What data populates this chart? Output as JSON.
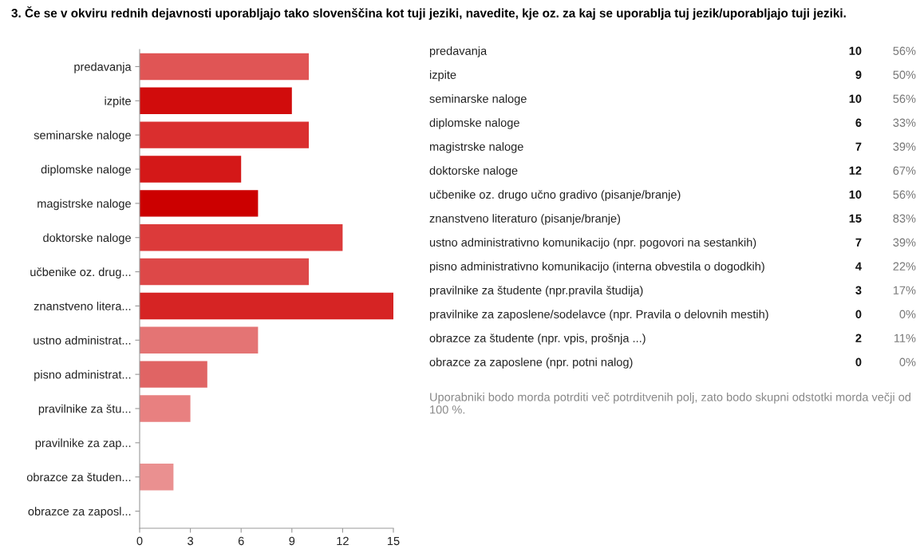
{
  "chart_data": [
    {
      "type": "bar",
      "orientation": "horizontal",
      "title": "3. Če se v okviru rednih dejavnosti uporabljajo tako slovenščina kot tuji jeziki, navedite, kje oz. za kaj se uporablja tuj jezik/uporabljajo tuji jeziki.",
      "categories": [
        "predavanja",
        "izpite",
        "seminarske naloge",
        "diplomske naloge",
        "magistrske naloge",
        "doktorske naloge",
        "učbenike oz. drug...",
        "znanstveno litera...",
        "ustno administrat...",
        "pisno administrat...",
        "pravilnike za štu...",
        "pravilnike za zap...",
        "obrazce za študen...",
        "obrazce za zaposl..."
      ],
      "values": [
        10,
        9,
        10,
        6,
        7,
        12,
        10,
        15,
        7,
        4,
        3,
        0,
        2,
        0
      ],
      "colors": [
        "#e05555",
        "#d10c0c",
        "#da2e2e",
        "#d41818",
        "#cc0000",
        "#dc3a3a",
        "#dd4848",
        "#d62424",
        "#e47474",
        "#e06464",
        "#e88080",
        "#ee9999",
        "#ea9090",
        "#ee9999"
      ],
      "xlim": [
        0,
        15
      ],
      "xticks": [
        0,
        3,
        6,
        9,
        12,
        15
      ],
      "grid": false
    },
    {
      "type": "other",
      "annotations": [
        "predavanja",
        "10",
        "56%",
        "izpite",
        "9",
        "50%",
        "seminarske naloge",
        "10",
        "56%",
        "diplomske naloge",
        "6",
        "33%",
        "magistrske naloge",
        "7",
        "39%",
        "doktorske naloge",
        "12",
        "67%",
        "učbenike oz. drugo učno gradivo (pisanje/branje)",
        "10",
        "56%",
        "znanstveno literaturo (pisanje/branje)",
        "15",
        "83%",
        "ustno administrativno komunikacijo (npr. pogovori na sestankih)",
        "7",
        "39%",
        "pisno administrativno komunikacijo (interna obvestila o dogodkih)",
        "4",
        "22%",
        "pravilnike za študente (npr.pravila študija)",
        "3",
        "17%",
        "pravilnike za zaposlene/sodelavce (npr. Pravila o delovnih mestih)",
        "0",
        "0%",
        "obrazce za študente (npr. vpis, prošnja ...)",
        "2",
        "11%",
        "obrazce za zaposlene (npr. potni nalog)",
        "0",
        "0%",
        "Uporabniki bodo morda potrditi več potrditvenih polj, zato bodo skupni odstotki morda večji od 100 %."
      ]
    }
  ]
}
